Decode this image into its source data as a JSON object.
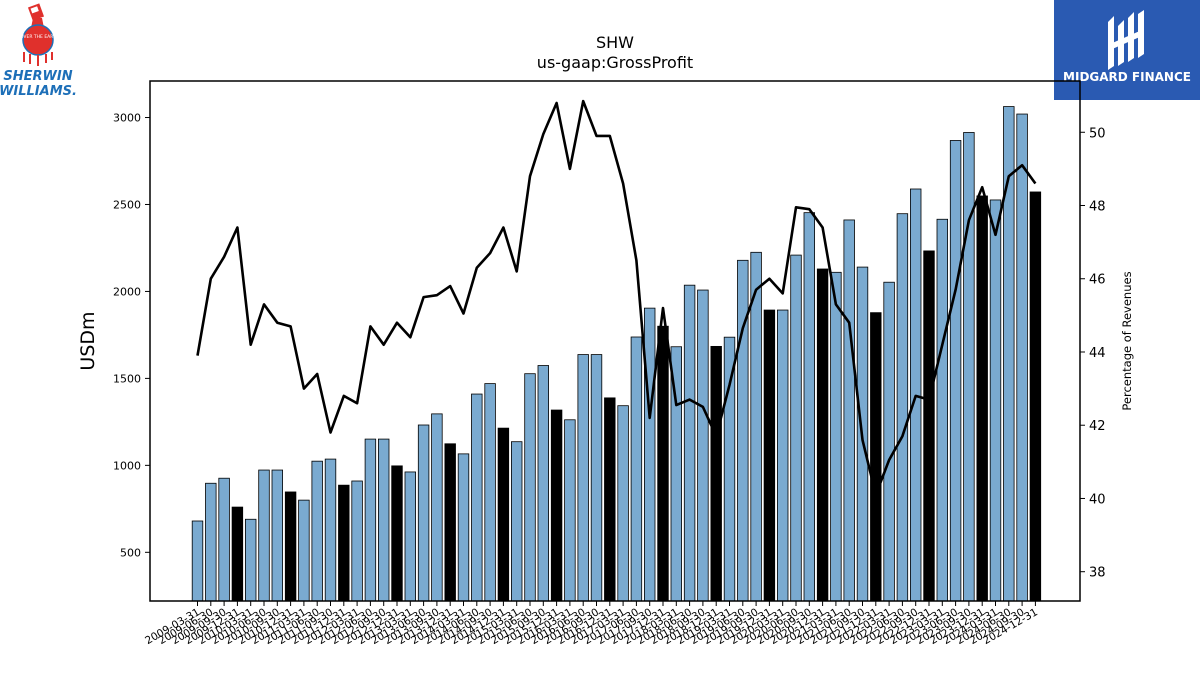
{
  "brand": {
    "left_logo_text": [
      "SHERWIN",
      "WILLIAMS."
    ],
    "left_logo_badge": "COVER THE EARTH",
    "right_logo_text": "MIDGARD FINANCE"
  },
  "colors": {
    "bar": "#7aaad0",
    "bar_q4": "#000000",
    "line": "#000000",
    "brand_blue": "#2a5ab2",
    "sw_red": "#e0302c",
    "sw_blue": "#1d6fb8"
  },
  "chart_data": {
    "type": "bar+line",
    "title": "SHW",
    "subtitle": "us-gaap:GrossProfit",
    "ylabel": "USDm",
    "y2label": "Percentage of Revenues",
    "ylim": [
      220,
      3210
    ],
    "y2lim": [
      37.2,
      51.4
    ],
    "yticks": [
      500,
      1000,
      1500,
      2000,
      2500,
      3000
    ],
    "y2ticks": [
      38,
      40,
      42,
      44,
      46,
      48,
      50
    ],
    "categories": [
      "2009-03-31",
      "2009-06-30",
      "2009-09-30",
      "2009-12-31",
      "2010-03-31",
      "2010-06-30",
      "2010-09-30",
      "2010-12-31",
      "2011-03-31",
      "2011-06-30",
      "2011-09-30",
      "2011-12-31",
      "2012-03-31",
      "2012-06-30",
      "2012-09-30",
      "2012-12-31",
      "2013-03-31",
      "2013-06-30",
      "2013-09-30",
      "2013-12-31",
      "2014-03-31",
      "2014-06-30",
      "2014-09-30",
      "2014-12-31",
      "2015-03-31",
      "2015-06-30",
      "2015-09-30",
      "2015-12-31",
      "2016-03-31",
      "2016-06-30",
      "2016-09-30",
      "2016-12-31",
      "2017-03-31",
      "2017-06-30",
      "2017-09-30",
      "2017-12-31",
      "2018-03-31",
      "2018-06-30",
      "2018-09-30",
      "2018-12-31",
      "2019-03-31",
      "2019-06-30",
      "2019-09-30",
      "2019-12-31",
      "2020-03-31",
      "2020-06-30",
      "2020-09-30",
      "2020-12-31",
      "2021-03-31",
      "2021-06-30",
      "2021-09-30",
      "2021-12-31",
      "2022-03-31",
      "2022-06-30",
      "2022-09-30",
      "2022-12-31",
      "2023-03-31",
      "2023-06-30",
      "2023-09-30",
      "2023-12-31",
      "2024-03-31",
      "2024-06-30",
      "2024-09-30",
      "2024-12-31"
    ],
    "series": [
      {
        "kind": "bar",
        "values": [
          680,
          897,
          926,
          760,
          690,
          973,
          973,
          847,
          800,
          1024,
          1036,
          886,
          910,
          1151,
          1151,
          997,
          962,
          1232,
          1296,
          1124,
          1066,
          1410,
          1470,
          1214,
          1136,
          1527,
          1574,
          1318,
          1262,
          1637,
          1637,
          1388,
          1343,
          1738,
          1904,
          1800,
          1682,
          2036,
          2008,
          1684,
          1737,
          2179,
          2225,
          1893,
          1893,
          2209,
          2453,
          2129,
          2110,
          2411,
          2140,
          1878,
          2053,
          2447,
          2589,
          2233,
          2415,
          2868,
          2914,
          2549,
          2526,
          3063,
          3020,
          2572
        ]
      },
      {
        "kind": "line",
        "axis": "y2",
        "values": [
          43.9,
          46.0,
          46.6,
          47.4,
          44.2,
          45.3,
          44.8,
          44.7,
          43.0,
          43.4,
          41.8,
          42.8,
          42.6,
          44.7,
          44.2,
          44.8,
          44.4,
          45.5,
          45.55,
          45.8,
          45.05,
          46.3,
          46.7,
          47.4,
          46.2,
          48.8,
          49.95,
          50.8,
          49.0,
          50.85,
          49.9,
          49.9,
          48.6,
          46.5,
          42.2,
          45.2,
          42.55,
          42.7,
          42.5,
          41.7,
          43.1,
          44.65,
          45.7,
          46.0,
          45.6,
          47.95,
          47.9,
          47.4,
          45.3,
          44.8,
          41.6,
          40.1,
          41.05,
          41.7,
          42.8,
          42.7,
          44.2,
          45.7,
          47.6,
          48.5,
          47.2,
          48.8,
          49.1,
          48.6
        ]
      }
    ],
    "q4_indices": [
      3,
      7,
      11,
      15,
      19,
      23,
      27,
      31,
      35,
      39,
      43,
      47,
      51,
      55,
      59,
      63
    ],
    "grid": false,
    "legend": "none"
  }
}
